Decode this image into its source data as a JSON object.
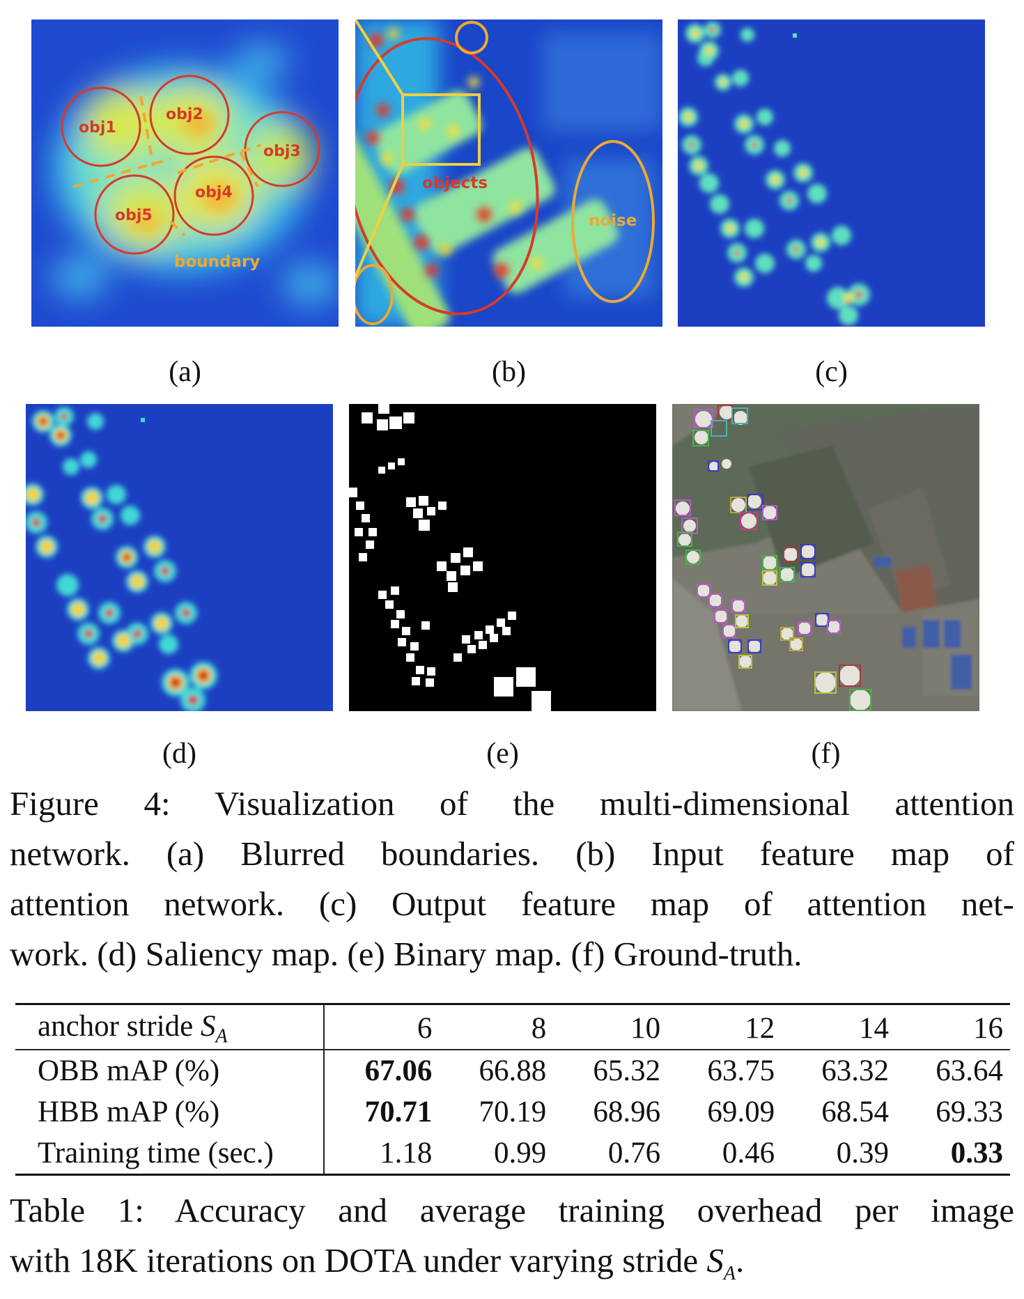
{
  "figure": {
    "panels": [
      {
        "id": "a",
        "label": "(a)",
        "annotations": [
          "obj1",
          "obj2",
          "obj3",
          "obj4",
          "obj5",
          "boundary"
        ]
      },
      {
        "id": "b",
        "label": "(b)",
        "annotations": [
          "objects",
          "noise"
        ]
      },
      {
        "id": "c",
        "label": "(c)"
      },
      {
        "id": "d",
        "label": "(d)"
      },
      {
        "id": "e",
        "label": "(e)"
      },
      {
        "id": "f",
        "label": "(f)"
      }
    ],
    "caption_lines": [
      "Figure 4: Visualization of the multi-dimensional attention",
      "network. (a) Blurred boundaries. (b) Input feature map of",
      "attention network. (c) Output feature map of attention net-",
      "work. (d) Saliency map. (e) Binary map. (f) Ground-truth."
    ]
  },
  "table": {
    "header_label": "anchor stride",
    "header_symbol": "S",
    "header_subscript": "A",
    "strides": [
      "6",
      "8",
      "10",
      "12",
      "14",
      "16"
    ],
    "rows": [
      {
        "label": "OBB mAP (%)",
        "values": [
          "67.06",
          "66.88",
          "65.32",
          "63.75",
          "63.32",
          "63.64"
        ],
        "best_index": 0
      },
      {
        "label": "HBB mAP (%)",
        "values": [
          "70.71",
          "70.19",
          "68.96",
          "69.09",
          "68.54",
          "69.33"
        ],
        "best_index": 0
      },
      {
        "label": "Training time (sec.)",
        "values": [
          "1.18",
          "0.99",
          "0.76",
          "0.46",
          "0.39",
          "0.33"
        ],
        "best_index": 5
      }
    ],
    "caption_lines": [
      "Table 1: Accuracy and average training overhead per image",
      "with 18K iterations on DOTA under varying stride "
    ],
    "caption_symbol": "S",
    "caption_subscript": "A",
    "caption_end": "."
  },
  "colors": {
    "heat_low": "#1a33c4",
    "heat_mid": "#3fd6e8",
    "heat_high": "#f0e23a",
    "heat_peak": "#d91e1e",
    "annotation_red": "#d63a2a",
    "annotation_orange": "#f0a832",
    "binary_bg": "#000000",
    "binary_fg": "#ffffff"
  }
}
